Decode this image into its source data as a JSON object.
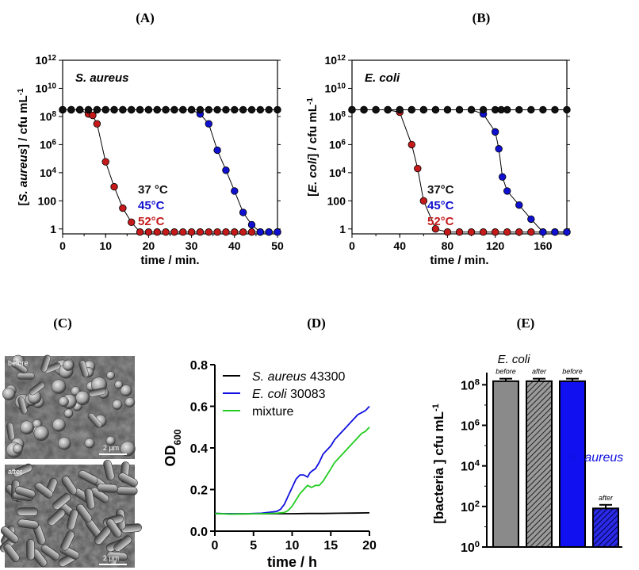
{
  "panels": {
    "A": "(A)",
    "B": "(B)",
    "C": "(C)",
    "D": "(D)",
    "E": "(E)"
  },
  "chart_data": [
    {
      "id": "A",
      "type": "line",
      "xlabel": "time / min.",
      "ylabel": {
        "pre": "[",
        "italic": "S. aureus",
        "post": "] / cfu mL",
        "sup": "-1"
      },
      "inset_label": "S. aureus",
      "xlim": [
        0,
        50
      ],
      "xticks": [
        "0",
        "10",
        "20",
        "30",
        "40",
        "50"
      ],
      "yticks": [
        "1",
        "100",
        "10^4",
        "10^6",
        "10^8",
        "10^10",
        "10^12"
      ],
      "yscale": "log",
      "series": [
        {
          "name": "37 °C",
          "color": "#111111",
          "x": [
            0,
            2,
            4,
            6,
            8,
            10,
            12,
            14,
            16,
            18,
            20,
            22,
            24,
            26,
            28,
            30,
            32,
            34,
            36,
            38,
            40,
            42,
            44,
            46,
            48,
            50
          ],
          "y": [
            "3e8",
            "3e8",
            "3e8",
            "3e8",
            "3e8",
            "3e8",
            "3e8",
            "3e8",
            "3e8",
            "3e8",
            "3e8",
            "3e8",
            "3e8",
            "3e8",
            "3e8",
            "3e8",
            "3e8",
            "3e8",
            "3e8",
            "3e8",
            "3e8",
            "3e8",
            "3e8",
            "3e8",
            "3e8",
            "3e8"
          ]
        },
        {
          "name": "45°C",
          "color": "#1010d0",
          "x": [
            0,
            2,
            4,
            6,
            8,
            10,
            12,
            14,
            16,
            18,
            20,
            22,
            24,
            26,
            28,
            30,
            32,
            34,
            36,
            38,
            40,
            42,
            44,
            46,
            48,
            50
          ],
          "y": [
            "3e8",
            "3e8",
            "3e8",
            "3e8",
            "3e8",
            "3e8",
            "3e8",
            "3e8",
            "3e8",
            "3e8",
            "3e8",
            "3e8",
            "3e8",
            "3e8",
            "3e8",
            "3e8",
            "1.5e8",
            "3e7",
            "4e5",
            "1.5e4",
            "5e2",
            "15",
            "2",
            "0.6",
            "0.6",
            "0.6"
          ]
        },
        {
          "name": "52°C",
          "color": "#c41a1a",
          "x": [
            0,
            2,
            4,
            6,
            7,
            8,
            10,
            12,
            14,
            16,
            18,
            20,
            22,
            24,
            26,
            28,
            30,
            32,
            34,
            36,
            38,
            40,
            42,
            44,
            46,
            48,
            50
          ],
          "y": [
            "3e8",
            "3e8",
            "3e8",
            "1.5e8",
            "1.2e8",
            "3e7",
            "6e4",
            "1e3",
            "30",
            "3",
            "0.6",
            "0.6",
            "0.6",
            "0.6",
            "0.6",
            "0.6",
            "0.6",
            "0.6",
            "0.6",
            "0.6",
            "0.6",
            "0.6",
            "0.6",
            "0.6",
            "0.6",
            "0.6",
            "0.6"
          ]
        }
      ]
    },
    {
      "id": "B",
      "type": "line",
      "xlabel": "time / min.",
      "ylabel": {
        "pre": "[",
        "italic": "E. coli",
        "post": "] / cfu mL",
        "sup": "-1"
      },
      "inset_label": "E. coli",
      "xlim": [
        0,
        180
      ],
      "xticks": [
        "0",
        "40",
        "80",
        "120",
        "160"
      ],
      "yticks": [
        "1",
        "100",
        "10^4",
        "10^6",
        "10^8",
        "10^10",
        "10^12"
      ],
      "yscale": "log",
      "series": [
        {
          "name": "37°C",
          "color": "#111111",
          "x": [
            0,
            10,
            20,
            30,
            40,
            50,
            60,
            70,
            80,
            90,
            100,
            110,
            120,
            125,
            130,
            140,
            150,
            160,
            170,
            180
          ],
          "y": [
            "3e8",
            "3e8",
            "3e8",
            "3e8",
            "3e8",
            "3e8",
            "3e8",
            "3e8",
            "3e8",
            "3e8",
            "3e8",
            "3e8",
            "3e8",
            "3e8",
            "3e8",
            "3e8",
            "3e8",
            "3e8",
            "3e8",
            "3e8"
          ]
        },
        {
          "name": "45°C",
          "color": "#1010d0",
          "x": [
            0,
            10,
            20,
            30,
            40,
            50,
            60,
            70,
            80,
            90,
            100,
            110,
            120,
            123,
            126,
            130,
            140,
            150,
            160,
            170,
            180
          ],
          "y": [
            "3e8",
            "3e8",
            "3e8",
            "3e8",
            "3e8",
            "3e8",
            "3e8",
            "3e8",
            "3e8",
            "3e8",
            "3e8",
            "1.5e8",
            "8e6",
            "5e5",
            "5e3",
            "5e2",
            "50",
            "5",
            "0.6",
            "0.6",
            "0.6"
          ]
        },
        {
          "name": "52°C",
          "color": "#c41a1a",
          "x": [
            0,
            10,
            20,
            30,
            40,
            50,
            55,
            60,
            70,
            80,
            90,
            100,
            110,
            120,
            130,
            140,
            150,
            160,
            170,
            180
          ],
          "y": [
            "3e8",
            "3e8",
            "3e8",
            "3e8",
            "2e8",
            "1e6",
            "2e4",
            "100",
            "1",
            "0.6",
            "0.6",
            "0.6",
            "0.6",
            "0.6",
            "0.6",
            "0.6",
            "0.6",
            "0.6",
            "0.6",
            "0.6"
          ]
        }
      ]
    },
    {
      "id": "D",
      "type": "line",
      "xlabel": "time / h",
      "ylabel": {
        "pre": "OD",
        "sub": "600"
      },
      "xlim": [
        0,
        20
      ],
      "ylim": [
        0,
        0.8
      ],
      "xticks": [
        "0",
        "5",
        "10",
        "15",
        "20"
      ],
      "yticks": [
        "0.0",
        "0.2",
        "0.4",
        "0.6",
        "0.8"
      ],
      "series": [
        {
          "name": "S. aureus 43300",
          "italic": "S. aureus",
          "suffix": " 43300",
          "color": "#000000",
          "x": [
            0,
            2,
            4,
            6,
            8,
            10,
            12,
            14,
            16,
            18,
            20
          ],
          "y": [
            0.085,
            0.083,
            0.083,
            0.084,
            0.084,
            0.084,
            0.085,
            0.085,
            0.086,
            0.087,
            0.088
          ]
        },
        {
          "name": "E. coli 30083",
          "italic": "E. coli",
          "suffix": " 30083",
          "color": "#1010e0",
          "x": [
            0,
            2,
            4,
            6,
            8,
            8.5,
            9,
            9.5,
            10,
            10.5,
            11,
            11.5,
            12,
            12.3,
            12.6,
            13,
            13.5,
            14,
            14.5,
            15,
            15.5,
            16,
            16.5,
            17,
            17.5,
            18,
            18.5,
            19,
            19.5,
            20
          ],
          "y": [
            0.085,
            0.083,
            0.084,
            0.086,
            0.095,
            0.105,
            0.13,
            0.17,
            0.21,
            0.25,
            0.27,
            0.27,
            0.26,
            0.28,
            0.29,
            0.3,
            0.33,
            0.37,
            0.39,
            0.41,
            0.44,
            0.46,
            0.48,
            0.5,
            0.52,
            0.54,
            0.56,
            0.57,
            0.58,
            0.6
          ]
        },
        {
          "name": "mixture",
          "color": "#22cc22",
          "x": [
            0,
            2,
            4,
            6,
            8,
            9,
            9.5,
            10,
            10.5,
            11,
            11.5,
            12,
            12.5,
            13,
            13.5,
            14,
            14.5,
            15,
            15.5,
            16,
            16.5,
            17,
            17.5,
            18,
            18.5,
            19,
            19.5,
            20
          ],
          "y": [
            0.085,
            0.082,
            0.083,
            0.084,
            0.086,
            0.09,
            0.1,
            0.12,
            0.15,
            0.18,
            0.2,
            0.22,
            0.21,
            0.22,
            0.22,
            0.24,
            0.27,
            0.3,
            0.33,
            0.35,
            0.37,
            0.39,
            0.41,
            0.43,
            0.45,
            0.47,
            0.48,
            0.5
          ]
        }
      ]
    },
    {
      "id": "E",
      "type": "bar",
      "ylabel": {
        "pre": "[bacteria ] cfu mL",
        "sup": "-1"
      },
      "yscale": "log",
      "yticks": [
        "10^0",
        "10^2",
        "10^4",
        "10^6",
        "10^8"
      ],
      "group_labels": [
        "E. coli",
        "S. aureus"
      ],
      "bars": [
        {
          "label": "before",
          "value": "1.5e8",
          "error": "0.5e8",
          "fill": "#8a8a8a",
          "hatch": false
        },
        {
          "label": "after",
          "value": "1.5e8",
          "error": "0.5e8",
          "fill": "#777777",
          "hatch": true
        },
        {
          "label": "before",
          "value": "1.5e8",
          "error": "0.5e8",
          "fill": "#1010f0",
          "hatch": false
        },
        {
          "label": "after",
          "value": "80",
          "error": "40",
          "fill": "#1a1ad0",
          "hatch": true
        }
      ]
    }
  ],
  "images": {
    "before_label": "before",
    "after_label": "after",
    "scale_label": "2 µm"
  },
  "colors": {
    "black": "#111111",
    "blue": "#1010d0",
    "red": "#c41a1a",
    "green": "#22cc22"
  }
}
